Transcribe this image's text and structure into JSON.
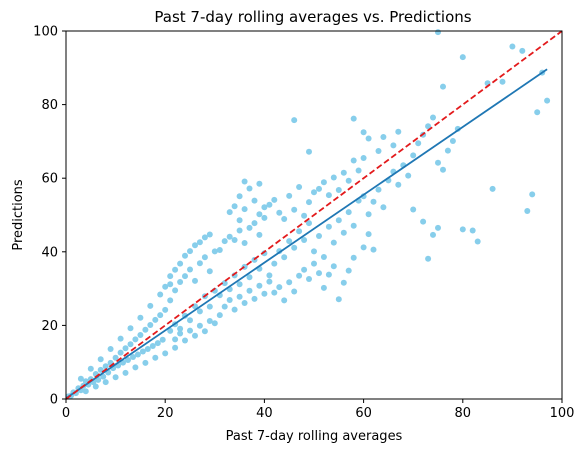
{
  "chart_data": {
    "type": "scatter",
    "title": "Past 7-day rolling averages vs. Predictions",
    "xlabel": "Past 7-day rolling averages",
    "ylabel": "Predictions",
    "xlim": [
      0,
      100
    ],
    "ylim": [
      0,
      100
    ],
    "xticks": [
      "0",
      "20",
      "40",
      "60",
      "80",
      "100"
    ],
    "yticks": [
      "0",
      "20",
      "40",
      "60",
      "80",
      "100"
    ],
    "grid": false,
    "legend": "none",
    "colors": {
      "points": "#87ceeb",
      "fit_line": "#1f77b4",
      "reference_line": "#e31a1c"
    },
    "series": [
      {
        "kind": "scatter",
        "points": [
          [
            0.5,
            0.7
          ],
          [
            1,
            0.9
          ],
          [
            1.5,
            1.8
          ],
          [
            2,
            1.6
          ],
          [
            2.5,
            2.9
          ],
          [
            3,
            2.4
          ],
          [
            3.5,
            3.6
          ],
          [
            4,
            4.8
          ],
          [
            4.5,
            3.9
          ],
          [
            5,
            5.4
          ],
          [
            5.5,
            4.6
          ],
          [
            6,
            6.8
          ],
          [
            6.5,
            5.2
          ],
          [
            7,
            7.9
          ],
          [
            7.5,
            6.1
          ],
          [
            8,
            8.9
          ],
          [
            8.5,
            7.2
          ],
          [
            9,
            9.8
          ],
          [
            9.5,
            8.4
          ],
          [
            10,
            11.2
          ],
          [
            10.5,
            9.1
          ],
          [
            11,
            12.6
          ],
          [
            11.5,
            9.9
          ],
          [
            12,
            13.8
          ],
          [
            12.5,
            10.6
          ],
          [
            13,
            14.9
          ],
          [
            13.5,
            11.4
          ],
          [
            14,
            16.2
          ],
          [
            14.5,
            12.1
          ],
          [
            15,
            17.4
          ],
          [
            15.5,
            12.9
          ],
          [
            16,
            18.8
          ],
          [
            16.5,
            13.6
          ],
          [
            17,
            20.1
          ],
          [
            17.5,
            14.4
          ],
          [
            18,
            21.5
          ],
          [
            18.5,
            15.2
          ],
          [
            19,
            22.8
          ],
          [
            19.5,
            16.1
          ],
          [
            20,
            24.2
          ],
          [
            3,
            5.5
          ],
          [
            5,
            8.2
          ],
          [
            7,
            10.8
          ],
          [
            9,
            13.6
          ],
          [
            11,
            16.4
          ],
          [
            13,
            19.2
          ],
          [
            15,
            22.1
          ],
          [
            17,
            25.3
          ],
          [
            19,
            28.4
          ],
          [
            21,
            31.2
          ],
          [
            4,
            2.1
          ],
          [
            6,
            3.4
          ],
          [
            8,
            4.6
          ],
          [
            10,
            5.9
          ],
          [
            12,
            7.1
          ],
          [
            14,
            8.6
          ],
          [
            16,
            9.8
          ],
          [
            18,
            11.2
          ],
          [
            20,
            12.4
          ],
          [
            22,
            13.9
          ],
          [
            21,
            18.5
          ],
          [
            22,
            20.3
          ],
          [
            23,
            19.1
          ],
          [
            24,
            22.6
          ],
          [
            25,
            21.4
          ],
          [
            26,
            25.2
          ],
          [
            27,
            23.8
          ],
          [
            28,
            27.9
          ],
          [
            29,
            25.1
          ],
          [
            30,
            29.4
          ],
          [
            21,
            26.8
          ],
          [
            22,
            29.5
          ],
          [
            23,
            31.8
          ],
          [
            24,
            33.4
          ],
          [
            25,
            35.2
          ],
          [
            26,
            32.1
          ],
          [
            27,
            36.9
          ],
          [
            28,
            38.5
          ],
          [
            29,
            34.7
          ],
          [
            30,
            40.1
          ],
          [
            22,
            16.2
          ],
          [
            23,
            17.8
          ],
          [
            24,
            15.9
          ],
          [
            25,
            18.6
          ],
          [
            26,
            17.2
          ],
          [
            27,
            19.9
          ],
          [
            28,
            18.4
          ],
          [
            29,
            21.2
          ],
          [
            30,
            20.6
          ],
          [
            31,
            22.8
          ],
          [
            20,
            30.5
          ],
          [
            21,
            33.4
          ],
          [
            22,
            35.1
          ],
          [
            23,
            36.8
          ],
          [
            24,
            38.9
          ],
          [
            25,
            40.2
          ],
          [
            26,
            41.8
          ],
          [
            27,
            42.6
          ],
          [
            28,
            43.9
          ],
          [
            29,
            44.7
          ],
          [
            31,
            28.2
          ],
          [
            32,
            31.5
          ],
          [
            33,
            29.8
          ],
          [
            34,
            33.6
          ],
          [
            35,
            31.2
          ],
          [
            36,
            35.9
          ],
          [
            37,
            33.1
          ],
          [
            38,
            37.8
          ],
          [
            39,
            35.4
          ],
          [
            40,
            39.6
          ],
          [
            31,
            40.5
          ],
          [
            32,
            42.9
          ],
          [
            33,
            44.1
          ],
          [
            34,
            43.2
          ],
          [
            35,
            45.8
          ],
          [
            36,
            42.4
          ],
          [
            37,
            46.5
          ],
          [
            38,
            47.8
          ],
          [
            39,
            44.6
          ],
          [
            40,
            49.2
          ],
          [
            32,
            25.1
          ],
          [
            33,
            26.9
          ],
          [
            34,
            24.3
          ],
          [
            35,
            27.8
          ],
          [
            36,
            26.1
          ],
          [
            37,
            29.4
          ],
          [
            38,
            27.2
          ],
          [
            39,
            30.8
          ],
          [
            40,
            28.6
          ],
          [
            41,
            31.9
          ],
          [
            33,
            50.8
          ],
          [
            34,
            52.4
          ],
          [
            35,
            55.1
          ],
          [
            36,
            51.6
          ],
          [
            38,
            53.9
          ],
          [
            39,
            58.5
          ],
          [
            37,
            57.2
          ],
          [
            36,
            59.1
          ],
          [
            35,
            48.6
          ],
          [
            39,
            50.2
          ],
          [
            40,
            52.1
          ],
          [
            41,
            33.6
          ],
          [
            42,
            36.8
          ],
          [
            43,
            40.2
          ],
          [
            44,
            38.5
          ],
          [
            45,
            42.9
          ],
          [
            46,
            41.1
          ],
          [
            47,
            45.6
          ],
          [
            48,
            43.2
          ],
          [
            49,
            47.8
          ],
          [
            41,
            52.8
          ],
          [
            42,
            54.1
          ],
          [
            43,
            50.6
          ],
          [
            44,
            48.9
          ],
          [
            45,
            55.2
          ],
          [
            46,
            51.4
          ],
          [
            47,
            57.6
          ],
          [
            48,
            49.8
          ],
          [
            49,
            53.5
          ],
          [
            50,
            56.2
          ],
          [
            42,
            28.9
          ],
          [
            43,
            30.4
          ],
          [
            44,
            26.8
          ],
          [
            45,
            31.7
          ],
          [
            46,
            29.2
          ],
          [
            47,
            33.5
          ],
          [
            48,
            35.1
          ],
          [
            49,
            32.6
          ],
          [
            50,
            36.8
          ],
          [
            51,
            34.2
          ],
          [
            50,
            40.1
          ],
          [
            51,
            44.3
          ],
          [
            52,
            38.6
          ],
          [
            53,
            46.8
          ],
          [
            54,
            42.5
          ],
          [
            55,
            48.6
          ],
          [
            56,
            45.2
          ],
          [
            57,
            50.8
          ],
          [
            58,
            47.1
          ],
          [
            59,
            53.9
          ],
          [
            51,
            57.1
          ],
          [
            52,
            58.9
          ],
          [
            53,
            55.4
          ],
          [
            54,
            60.2
          ],
          [
            55,
            56.8
          ],
          [
            56,
            61.5
          ],
          [
            57,
            59.3
          ],
          [
            58,
            64.8
          ],
          [
            59,
            62.1
          ],
          [
            60,
            65.5
          ],
          [
            52,
            30.2
          ],
          [
            53,
            33.8
          ],
          [
            54,
            36.1
          ],
          [
            55,
            27.1
          ],
          [
            56,
            31.6
          ],
          [
            57,
            34.9
          ],
          [
            58,
            38.4
          ],
          [
            60,
            41.2
          ],
          [
            61,
            44.8
          ],
          [
            62,
            40.6
          ],
          [
            60,
            55.1
          ],
          [
            61,
            50.2
          ],
          [
            62,
            53.6
          ],
          [
            63,
            56.9
          ],
          [
            64,
            52.1
          ],
          [
            65,
            59.4
          ],
          [
            66,
            61.8
          ],
          [
            67,
            58.2
          ],
          [
            68,
            63.5
          ],
          [
            69,
            60.7
          ],
          [
            61,
            70.8
          ],
          [
            63,
            67.4
          ],
          [
            64,
            71.2
          ],
          [
            66,
            68.9
          ],
          [
            67,
            72.6
          ],
          [
            70,
            66.2
          ],
          [
            71,
            69.5
          ],
          [
            72,
            71.8
          ],
          [
            73,
            74.1
          ],
          [
            74,
            76.5
          ],
          [
            70,
            51.5
          ],
          [
            72,
            48.2
          ],
          [
            73,
            38.1
          ],
          [
            74,
            44.6
          ],
          [
            75,
            46.5
          ],
          [
            75,
            64.2
          ],
          [
            76,
            62.3
          ],
          [
            77,
            67.5
          ],
          [
            78,
            70.1
          ],
          [
            79,
            73.4
          ],
          [
            80,
            46.1
          ],
          [
            82,
            45.8
          ],
          [
            85,
            85.8
          ],
          [
            86,
            57.1
          ],
          [
            88,
            86.2
          ],
          [
            90,
            95.8
          ],
          [
            92,
            94.6
          ],
          [
            93,
            51.1
          ],
          [
            94,
            55.6
          ],
          [
            95,
            77.9
          ],
          [
            96,
            88.7
          ],
          [
            97,
            81.1
          ],
          [
            75,
            99.7
          ],
          [
            80,
            92.9
          ],
          [
            83,
            42.8
          ],
          [
            76,
            84.9
          ],
          [
            46,
            75.8
          ],
          [
            49,
            67.2
          ],
          [
            58,
            76.2
          ],
          [
            60,
            72.5
          ]
        ]
      },
      {
        "kind": "line",
        "name": "",
        "points": [
          [
            0,
            0.2
          ],
          [
            97,
            89.6
          ]
        ]
      },
      {
        "kind": "dashed-line",
        "name": "",
        "points": [
          [
            0,
            0
          ],
          [
            100,
            100
          ]
        ]
      }
    ]
  }
}
